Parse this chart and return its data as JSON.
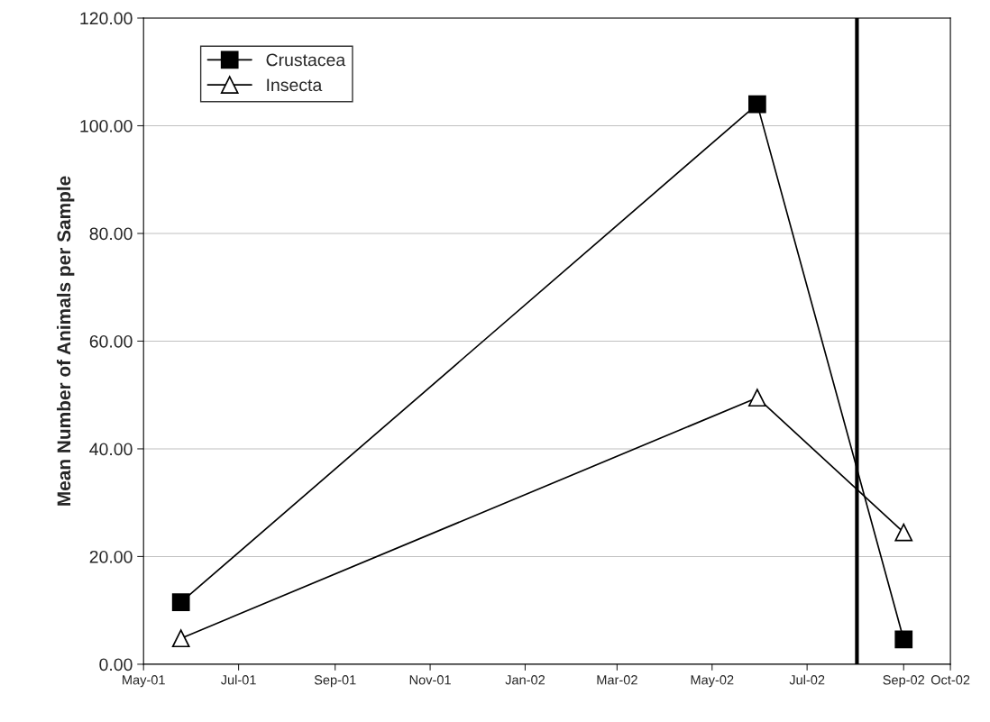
{
  "chart_data": {
    "type": "line",
    "ylabel": "Mean Number of Animals per Sample",
    "x": [
      "2001-05-25",
      "2002-05-30",
      "2002-09-01"
    ],
    "series": [
      {
        "name": "Crustacea",
        "color": "#000000",
        "marker": "square",
        "values": [
          11.5,
          104,
          4.6
        ]
      },
      {
        "name": "Insecta",
        "color": "#000000",
        "marker": "triangle",
        "values": [
          4.8,
          49.5,
          24.5
        ]
      }
    ],
    "xlim": [
      "2001-05-01",
      "2002-10-01"
    ],
    "xticks": [
      {
        "value": "2001-05-01",
        "label": "May-01"
      },
      {
        "value": "2001-07-01",
        "label": "Jul-01"
      },
      {
        "value": "2001-09-01",
        "label": "Sep-01"
      },
      {
        "value": "2001-11-01",
        "label": "Nov-01"
      },
      {
        "value": "2002-01-01",
        "label": "Jan-02"
      },
      {
        "value": "2002-03-01",
        "label": "Mar-02"
      },
      {
        "value": "2002-05-01",
        "label": "May-02"
      },
      {
        "value": "2002-07-01",
        "label": "Jul-02"
      },
      {
        "value": "2002-09-01",
        "label": "Sep-02"
      },
      {
        "value": "2002-10-01",
        "label": "Oct-02"
      }
    ],
    "ylim": [
      0,
      120
    ],
    "yticks": [
      {
        "value": 0,
        "label": "0.00"
      },
      {
        "value": 20,
        "label": "20.00"
      },
      {
        "value": 40,
        "label": "40.00"
      },
      {
        "value": 60,
        "label": "60.00"
      },
      {
        "value": 80,
        "label": "80.00"
      },
      {
        "value": 100,
        "label": "100.00"
      },
      {
        "value": 120,
        "label": "120.00"
      }
    ],
    "ref_lines": [
      {
        "axis": "x",
        "value": "2002-08-02",
        "color": "#000000",
        "line_style": "solid"
      }
    ],
    "grid": "y",
    "legend": "top left",
    "line_style": "solid"
  }
}
